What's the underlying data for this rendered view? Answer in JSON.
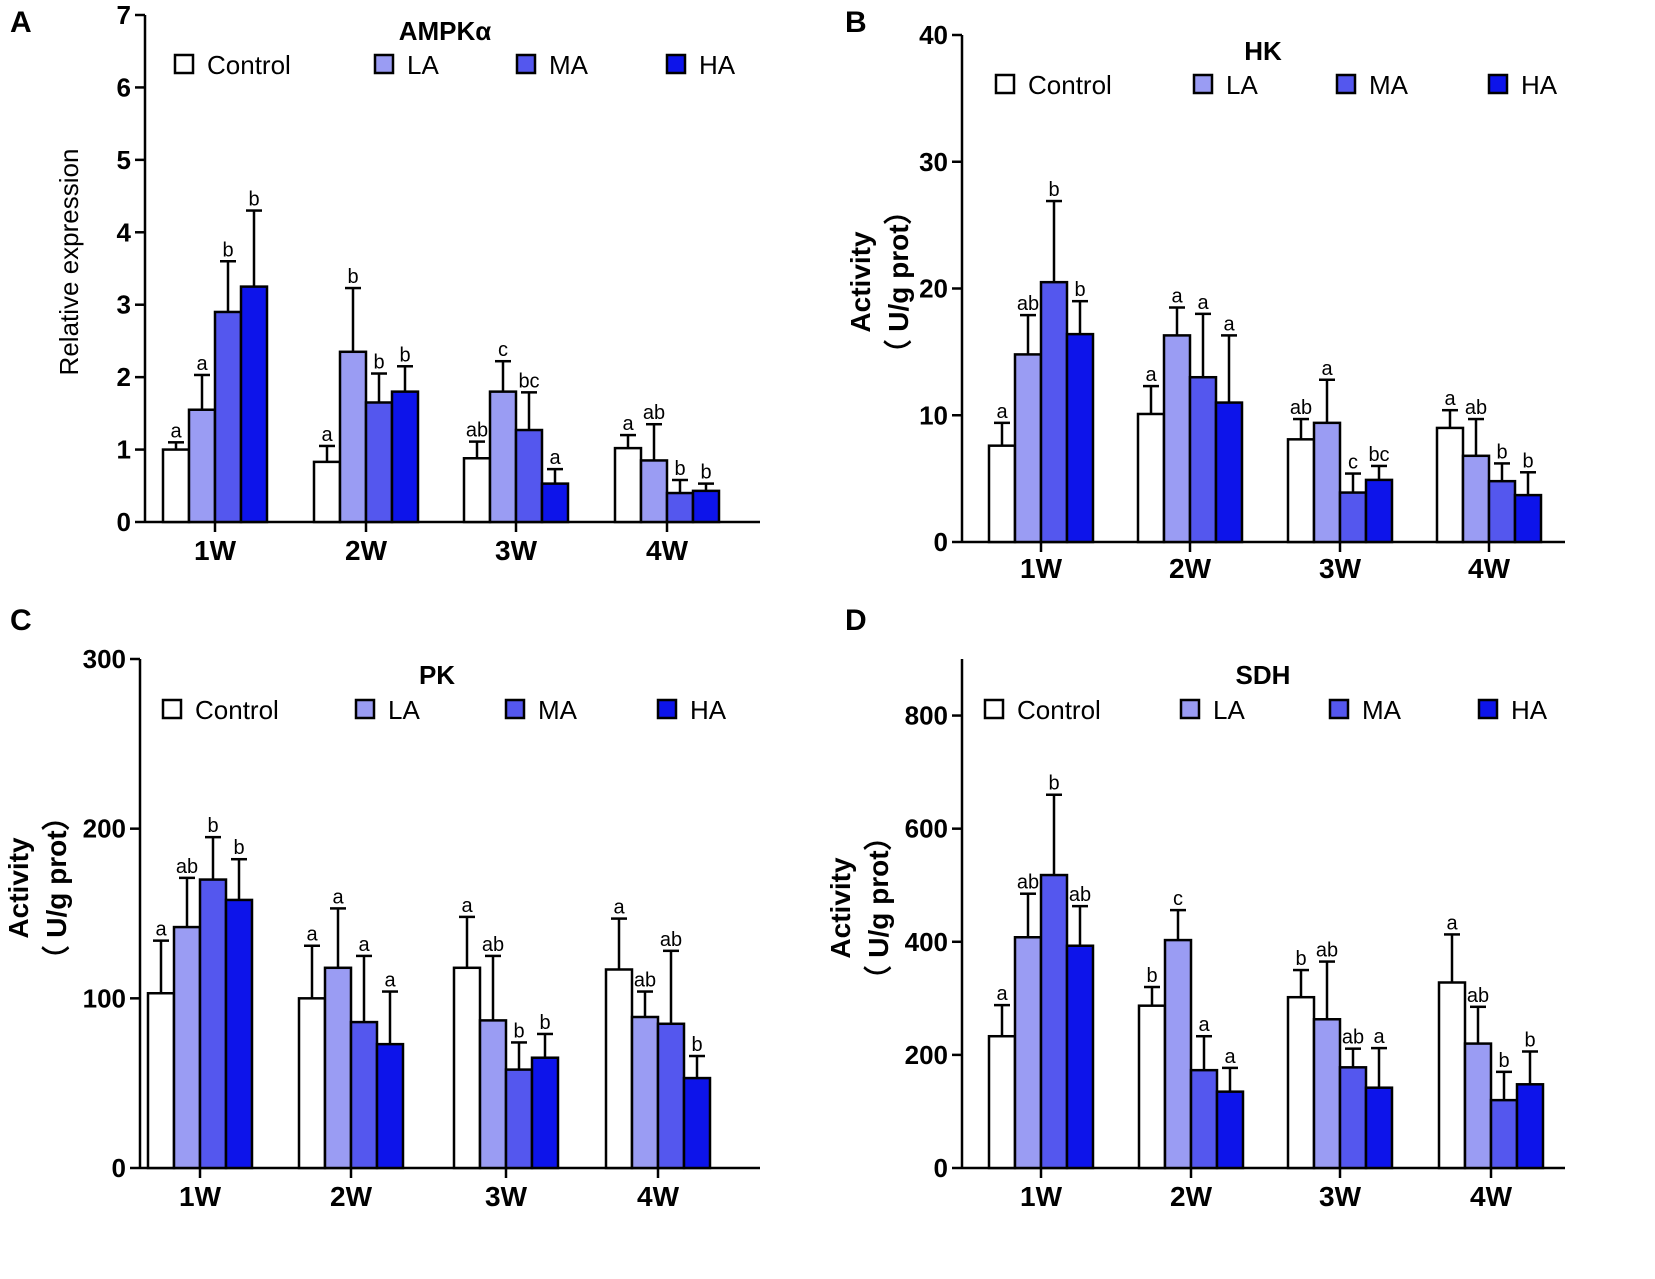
{
  "colors": {
    "Control": "#ffffff",
    "LA": "#9a9cf3",
    "MA": "#5457ee",
    "HA": "#0d14ea",
    "axis": "#000000"
  },
  "chart_data": [
    {
      "panel": "A",
      "type": "bar",
      "title": "AMPKα",
      "ylabel": "Relative expression",
      "ylabel_line2": "",
      "xlabel": "",
      "ylim": [
        0,
        7
      ],
      "yticks": [
        "0",
        "1",
        "2",
        "3",
        "4",
        "5",
        "6",
        "7"
      ],
      "categories": [
        "1W",
        "2W",
        "3W",
        "4W"
      ],
      "legend": [
        "Control",
        "LA",
        "MA",
        "HA"
      ],
      "series": [
        {
          "name": "Control",
          "values": [
            1.0,
            0.83,
            0.88,
            1.02
          ],
          "errors": [
            0.1,
            0.22,
            0.23,
            0.18
          ],
          "labels": [
            "a",
            "a",
            "ab",
            "a"
          ]
        },
        {
          "name": "LA",
          "values": [
            1.55,
            2.35,
            1.8,
            0.85
          ],
          "errors": [
            0.48,
            0.88,
            0.42,
            0.5
          ],
          "labels": [
            "a",
            "b",
            "c",
            "ab"
          ]
        },
        {
          "name": "MA",
          "values": [
            2.9,
            1.65,
            1.27,
            0.4
          ],
          "errors": [
            0.7,
            0.4,
            0.52,
            0.18
          ],
          "labels": [
            "b",
            "b",
            "bc",
            "b"
          ]
        },
        {
          "name": "HA",
          "values": [
            3.25,
            1.8,
            0.53,
            0.43
          ],
          "errors": [
            1.05,
            0.35,
            0.2,
            0.1
          ],
          "labels": [
            "b",
            "b",
            "a",
            "b"
          ]
        }
      ]
    },
    {
      "panel": "B",
      "type": "bar",
      "title": "HK",
      "ylabel": "Activity",
      "ylabel_line2": "（ U/g prot）",
      "xlabel": "",
      "ylim": [
        0,
        40
      ],
      "yticks": [
        "0",
        "10",
        "20",
        "30",
        "40"
      ],
      "categories": [
        "1W",
        "2W",
        "3W",
        "4W"
      ],
      "legend": [
        "Control",
        "LA",
        "MA",
        "HA"
      ],
      "series": [
        {
          "name": "Control",
          "values": [
            7.6,
            10.1,
            8.1,
            9.0
          ],
          "errors": [
            1.8,
            2.2,
            1.6,
            1.4
          ],
          "labels": [
            "a",
            "a",
            "ab",
            "a"
          ]
        },
        {
          "name": "LA",
          "values": [
            14.8,
            16.3,
            9.4,
            6.8
          ],
          "errors": [
            3.1,
            2.2,
            3.4,
            2.9
          ],
          "labels": [
            "ab",
            "a",
            "a",
            "ab"
          ]
        },
        {
          "name": "MA",
          "values": [
            20.5,
            13.0,
            3.9,
            4.8
          ],
          "errors": [
            6.4,
            5.0,
            1.5,
            1.4
          ],
          "labels": [
            "b",
            "a",
            "c",
            "b"
          ]
        },
        {
          "name": "HA",
          "values": [
            16.4,
            11.0,
            4.9,
            3.7
          ],
          "errors": [
            2.6,
            5.3,
            1.1,
            1.8
          ],
          "labels": [
            "b",
            "a",
            "bc",
            "b"
          ]
        }
      ]
    },
    {
      "panel": "C",
      "type": "bar",
      "title": "PK",
      "ylabel": "Activity",
      "ylabel_line2": "（ U/g prot）",
      "xlabel": "",
      "ylim": [
        0,
        300
      ],
      "yticks": [
        "0",
        "100",
        "200",
        "300"
      ],
      "categories": [
        "1W",
        "2W",
        "3W",
        "4W"
      ],
      "legend": [
        "Control",
        "LA",
        "MA",
        "HA"
      ],
      "series": [
        {
          "name": "Control",
          "values": [
            103,
            100,
            118,
            117
          ],
          "errors": [
            31,
            31,
            30,
            30
          ],
          "labels": [
            "a",
            "a",
            "a",
            "a"
          ]
        },
        {
          "name": "LA",
          "values": [
            142,
            118,
            87,
            89
          ],
          "errors": [
            29,
            35,
            38,
            15
          ],
          "labels": [
            "ab",
            "a",
            "ab",
            "ab"
          ]
        },
        {
          "name": "MA",
          "values": [
            170,
            86,
            58,
            85
          ],
          "errors": [
            25,
            39,
            16,
            43
          ],
          "labels": [
            "b",
            "a",
            "b",
            "ab"
          ]
        },
        {
          "name": "HA",
          "values": [
            158,
            73,
            65,
            53
          ],
          "errors": [
            24,
            31,
            14,
            13
          ],
          "labels": [
            "b",
            "a",
            "b",
            "b"
          ]
        }
      ]
    },
    {
      "panel": "D",
      "type": "bar",
      "title": "SDH",
      "ylabel": "Activity",
      "ylabel_line2": "（ U/g prot）",
      "xlabel": "",
      "ylim": [
        0,
        900
      ],
      "yticks": [
        "0",
        "200",
        "400",
        "600",
        "800"
      ],
      "categories": [
        "1W",
        "2W",
        "3W",
        "4W"
      ],
      "legend": [
        "Control",
        "LA",
        "MA",
        "HA"
      ],
      "series": [
        {
          "name": "Control",
          "values": [
            233,
            287,
            302,
            328
          ],
          "errors": [
            55,
            33,
            48,
            85
          ],
          "labels": [
            "a",
            "b",
            "b",
            "a"
          ]
        },
        {
          "name": "LA",
          "values": [
            408,
            403,
            263,
            220
          ],
          "errors": [
            77,
            53,
            102,
            65
          ],
          "labels": [
            "ab",
            "c",
            "ab",
            "ab"
          ]
        },
        {
          "name": "MA",
          "values": [
            518,
            173,
            178,
            120
          ],
          "errors": [
            142,
            60,
            33,
            50
          ],
          "labels": [
            "b",
            "a",
            "ab",
            "b"
          ]
        },
        {
          "name": "HA",
          "values": [
            393,
            135,
            142,
            148
          ],
          "errors": [
            70,
            42,
            70,
            58
          ],
          "labels": [
            "ab",
            "a",
            "a",
            "b"
          ]
        }
      ]
    }
  ]
}
